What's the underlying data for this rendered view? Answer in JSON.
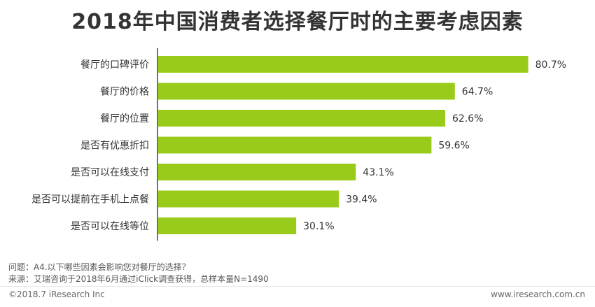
{
  "chart_data": {
    "type": "bar",
    "orientation": "horizontal",
    "title": "2018年中国消费者选择餐厅时的主要考虑因素",
    "categories": [
      "餐厅的口碑评价",
      "餐厅的价格",
      "餐厅的位置",
      "是否有优惠折扣",
      "是否可以在线支付",
      "是否可以提前在手机上点餐",
      "是否可以在线等位"
    ],
    "values": [
      80.7,
      64.7,
      62.6,
      59.6,
      43.1,
      39.4,
      30.1
    ],
    "value_labels": [
      "80.7%",
      "64.7%",
      "62.6%",
      "59.6%",
      "43.1%",
      "39.4%",
      "30.1%"
    ],
    "bar_color": "#99cc1a",
    "xlim": [
      0,
      100
    ],
    "grid": false,
    "legend": "none"
  },
  "notes": {
    "question": "问题：A4.以下哪些因素会影响您对餐厅的选择？",
    "source": "来源：艾瑞咨询于2018年6月通过iClick调查获得，总样本量N=1490"
  },
  "footer": {
    "copyright": "©2018.7 iResearch Inc",
    "website": "www.iresearch.com.cn"
  }
}
